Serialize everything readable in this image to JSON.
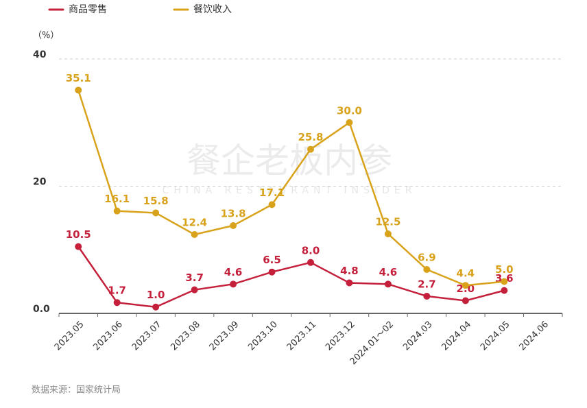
{
  "chart_data": {
    "type": "line",
    "unit_label": "（%）",
    "categories": [
      "2023.05",
      "2023.06",
      "2023.07",
      "2023.08",
      "2023.09",
      "2023.10",
      "2023.11",
      "2023.12",
      "2024.01～02",
      "2024.03",
      "2024.04",
      "2024.05",
      "2024.06"
    ],
    "series": [
      {
        "name": "商品零售",
        "color": "#c4203b",
        "values": [
          10.5,
          1.7,
          1.0,
          3.7,
          4.6,
          6.5,
          8.0,
          4.8,
          4.6,
          2.7,
          2.0,
          3.6,
          null
        ],
        "value_labels": [
          "10.5",
          "1.7",
          "1.0",
          "3.7",
          "4.6",
          "6.5",
          "8.0",
          "4.8",
          "4.6",
          "2.7",
          "2.0",
          "3.6",
          null
        ]
      },
      {
        "name": "餐饮收入",
        "color": "#d9a21b",
        "values": [
          35.1,
          16.1,
          15.8,
          12.4,
          13.8,
          17.1,
          25.8,
          30.0,
          12.5,
          6.9,
          4.4,
          5.0,
          null
        ],
        "value_labels": [
          "35.1",
          "16.1",
          "15.8",
          "12.4",
          "13.8",
          "17.1",
          "25.8",
          "30.0",
          "12.5",
          "6.9",
          "4.4",
          "5.0",
          null
        ]
      }
    ],
    "ylim": [
      0,
      40
    ],
    "yticks": [
      {
        "value": 0,
        "label": "0.0"
      },
      20,
      40
    ],
    "grid": true,
    "legend": "top",
    "watermark": "餐企老板内参",
    "watermark_sub": "CHINA RESTAURANT INSIDER",
    "source": "数据来源：国家统计局"
  }
}
